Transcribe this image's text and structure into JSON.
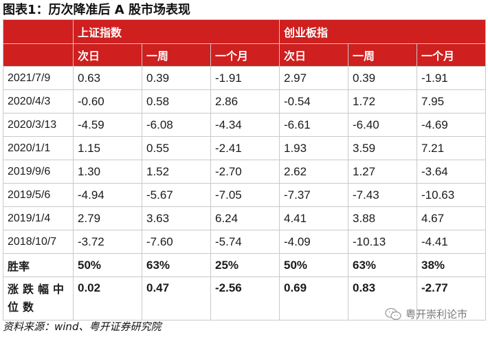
{
  "title": "图表1：历次降准后 A 股市场表现",
  "groups": [
    "上证指数",
    "创业板指"
  ],
  "subheaders": [
    "次日",
    "一周",
    "一个月",
    "次日",
    "一周",
    "一个月"
  ],
  "rows": [
    {
      "label": "2021/7/9",
      "values": [
        "0.63",
        "0.39",
        "-1.91",
        "2.97",
        "0.39",
        "-1.91"
      ]
    },
    {
      "label": "2020/4/3",
      "values": [
        "-0.60",
        "0.58",
        "2.86",
        "-0.54",
        "1.72",
        "7.95"
      ]
    },
    {
      "label": "2020/3/13",
      "values": [
        "-4.59",
        "-6.08",
        "-4.34",
        "-6.61",
        "-6.40",
        "-4.69"
      ]
    },
    {
      "label": "2020/1/1",
      "values": [
        "1.15",
        "0.55",
        "-2.41",
        "1.93",
        "3.59",
        "7.21"
      ]
    },
    {
      "label": "2019/9/6",
      "values": [
        "1.30",
        "1.52",
        "-2.70",
        "2.62",
        "1.27",
        "-3.64"
      ]
    },
    {
      "label": "2019/5/6",
      "values": [
        "-4.94",
        "-5.67",
        "-7.05",
        "-7.37",
        "-7.43",
        "-10.63"
      ]
    },
    {
      "label": "2019/1/4",
      "values": [
        "2.79",
        "3.63",
        "6.24",
        "4.41",
        "3.88",
        "4.67"
      ]
    },
    {
      "label": "2018/10/7",
      "values": [
        "-3.72",
        "-7.60",
        "-5.74",
        "-4.09",
        "-10.13",
        "-4.41"
      ]
    }
  ],
  "win_rate": {
    "label": "胜率",
    "values": [
      "50%",
      "63%",
      "25%",
      "50%",
      "63%",
      "38%"
    ]
  },
  "median": {
    "label": "涨跌幅中位数",
    "values": [
      "0.02",
      "0.47",
      "-2.56",
      "0.69",
      "0.83",
      "-2.77"
    ]
  },
  "source": "资料来源：wind、粤开证券研究院",
  "watermark": {
    "text": "粤开崇利论市",
    "icon": "wechat-icon"
  },
  "colors": {
    "header_bg": "#cf1f1f",
    "header_text": "#ffffff",
    "grid": "#c9c9c9"
  }
}
